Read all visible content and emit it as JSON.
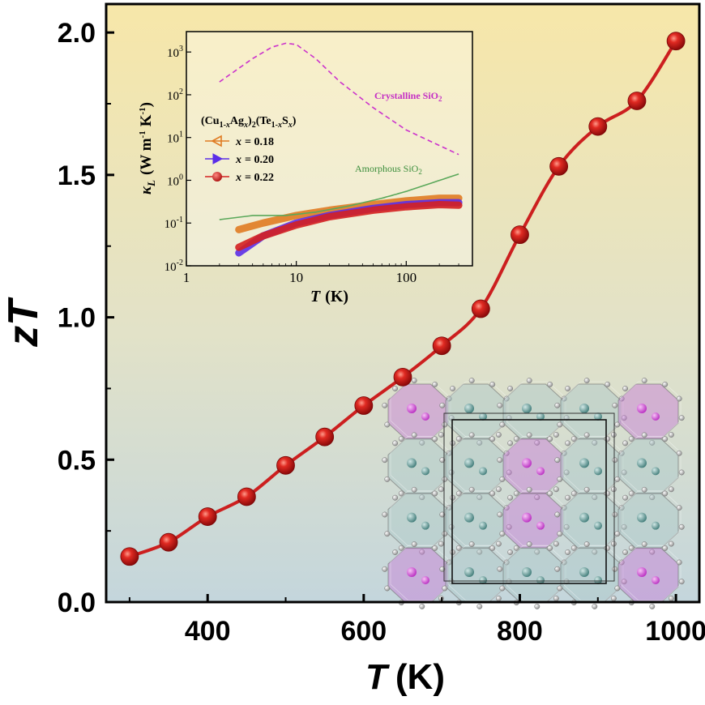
{
  "chart_data": [
    {
      "type": "line",
      "xlabel_var": "T",
      "xlabel_unit": "(K)",
      "ylabel": "zT",
      "xlim": [
        270,
        1030
      ],
      "ylim": [
        0,
        2.1
      ],
      "xticks": [
        400,
        600,
        800,
        1000
      ],
      "yticks": [
        0.0,
        0.5,
        1.0,
        1.5,
        2.0
      ],
      "ytick_labels": [
        "0.0",
        "0.5",
        "1.0",
        "1.5",
        "2.0"
      ],
      "series": [
        {
          "name": "zT",
          "color": "#cc1f1f",
          "x": [
            300,
            350,
            400,
            450,
            500,
            550,
            600,
            650,
            700,
            750,
            800,
            850,
            900,
            950,
            1000
          ],
          "y": [
            0.16,
            0.21,
            0.3,
            0.37,
            0.48,
            0.58,
            0.69,
            0.79,
            0.9,
            1.03,
            1.29,
            1.53,
            1.67,
            1.76,
            1.97
          ]
        }
      ]
    },
    {
      "type": "line",
      "scale": "log-log",
      "xlabel_var": "T",
      "xlabel_unit": "(K)",
      "ylabel_var": "κ",
      "ylabel_sub": "L",
      "ylabel_unit": "(W m",
      "ylabel_unit2": "K",
      "xlim": [
        1,
        400
      ],
      "ylim": [
        0.01,
        3000
      ],
      "xticks": [
        1,
        10,
        100
      ],
      "xtick_labels": [
        "1",
        "10",
        "100"
      ],
      "yticks": [
        0.01,
        0.1,
        1,
        10,
        100,
        1000
      ],
      "ytick_mantissa": "10",
      "ytick_exponents": [
        "-2",
        "-1",
        "0",
        "1",
        "2",
        "3"
      ],
      "legend": {
        "title": "(Cu1-xAgx)2(Te1-xSx)",
        "entries": [
          {
            "label_var": "x",
            "label_val": "= 0.18",
            "color": "#e07b22",
            "marker": "triangle-left"
          },
          {
            "label_var": "x",
            "label_val": "= 0.20",
            "color": "#5b2ee8",
            "marker": "triangle-right"
          },
          {
            "label_var": "x",
            "label_val": "= 0.22",
            "color": "#d42020",
            "marker": "circle"
          }
        ]
      },
      "series": [
        {
          "name": "Crystalline SiO2",
          "color": "#cc33cc",
          "dashed": true,
          "x": [
            2,
            4,
            6,
            8,
            10,
            15,
            25,
            50,
            100,
            300
          ],
          "y": [
            200,
            700,
            1300,
            1600,
            1500,
            700,
            200,
            50,
            15,
            4
          ]
        },
        {
          "name": "Amorphous SiO2",
          "color": "#5aa85a",
          "dashed": false,
          "x": [
            2,
            4,
            8,
            15,
            30,
            60,
            100,
            300
          ],
          "y": [
            0.12,
            0.15,
            0.15,
            0.18,
            0.25,
            0.38,
            0.55,
            1.4
          ]
        },
        {
          "name": "x = 0.18",
          "color": "#e07b22",
          "x": [
            3,
            5,
            10,
            20,
            50,
            100,
            200,
            300
          ],
          "y": [
            0.07,
            0.1,
            0.15,
            0.2,
            0.27,
            0.33,
            0.38,
            0.38
          ]
        },
        {
          "name": "x = 0.20",
          "color": "#5b2ee8",
          "x": [
            3,
            5,
            10,
            20,
            50,
            100,
            200,
            300
          ],
          "y": [
            0.02,
            0.05,
            0.1,
            0.15,
            0.22,
            0.27,
            0.3,
            0.3
          ]
        },
        {
          "name": "x = 0.22",
          "color": "#d42020",
          "x": [
            3,
            5,
            10,
            20,
            50,
            100,
            200,
            300
          ],
          "y": [
            0.027,
            0.05,
            0.09,
            0.14,
            0.2,
            0.24,
            0.27,
            0.26
          ]
        }
      ],
      "annotations": {
        "crystalline": "Crystalline SiO",
        "amorphous": "Amorphous SiO",
        "subscript": "2"
      }
    }
  ]
}
